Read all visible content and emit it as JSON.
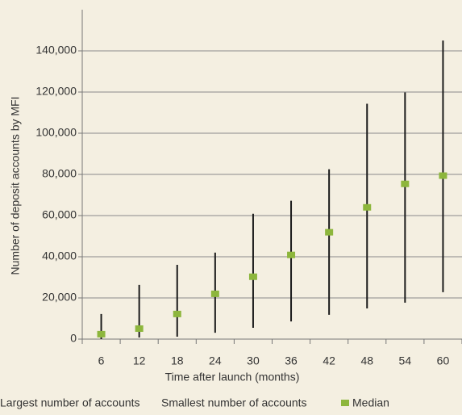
{
  "chart_data": {
    "type": "high-low-median",
    "xlabel": "Time after launch (months)",
    "ylabel": "Number of deposit accounts by MFI",
    "categories": [
      "6",
      "12",
      "18",
      "24",
      "30",
      "36",
      "42",
      "48",
      "54",
      "60"
    ],
    "series": [
      {
        "name": "Largest number of accounts",
        "color": "#1a1a1a",
        "values": [
          12200,
          26300,
          36100,
          42000,
          60900,
          67200,
          82500,
          114300,
          119800,
          145000
        ]
      },
      {
        "name": "Smallest number of accounts",
        "color": "#1a1a1a",
        "values": [
          0,
          800,
          1200,
          3100,
          5500,
          8600,
          11800,
          14900,
          17700,
          22800
        ]
      },
      {
        "name": "Median",
        "color": "#8db63c",
        "values": [
          2400,
          5100,
          12200,
          22000,
          30300,
          40900,
          51900,
          64000,
          75400,
          79400
        ]
      }
    ],
    "ylim": [
      0,
      160000
    ],
    "yticks": [
      0,
      {
        "value": 20000,
        "label": "20,000"
      },
      {
        "value": 40000,
        "label": "40,000"
      },
      {
        "value": 60000,
        "label": "60,000"
      },
      {
        "value": 80000,
        "label": "80,000"
      },
      {
        "value": 100000,
        "label": "100,000"
      },
      {
        "value": 120000,
        "label": "120,000"
      },
      {
        "value": 140000,
        "label": "140,000"
      }
    ],
    "grid": true,
    "legend": "bottom"
  }
}
